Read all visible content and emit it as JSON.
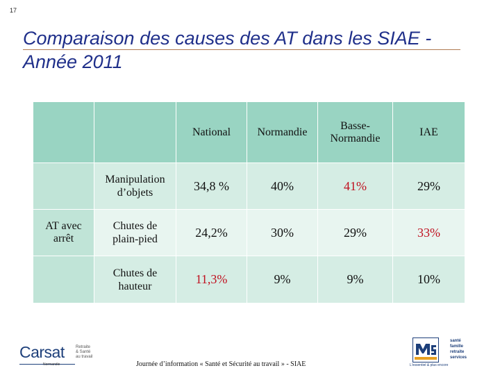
{
  "slide_number": "17",
  "title": "Comparaison des causes des AT dans les SIAE - Année 2011",
  "table": {
    "columns": [
      "National",
      "Normandie",
      "Basse-Normandie",
      "IAE"
    ],
    "group_label": "AT avec arrêt",
    "rows": [
      {
        "cause": "Manipulation d’objets",
        "values": [
          "34,8 %",
          "40%",
          "41%",
          "29%"
        ]
      },
      {
        "cause": "Chutes de plain-pied",
        "values": [
          "24,2%",
          "30%",
          "29%",
          "33%"
        ]
      },
      {
        "cause": "Chutes de hauteur",
        "values": [
          "11,3%",
          "9%",
          "9%",
          "10%"
        ]
      }
    ],
    "highlight_color": "#c0101f"
  },
  "footer": "Journée d’information « Santé et Sécurité au travail » - SIAE",
  "logos": {
    "carsat": {
      "name": "Carsat",
      "subtitle": "Retraite & Santé au travail",
      "region": "Normandie"
    },
    "msa": {
      "name": "msa",
      "services": "santé famille retraite services",
      "tagline": "L'essentiel & plus encore"
    }
  }
}
